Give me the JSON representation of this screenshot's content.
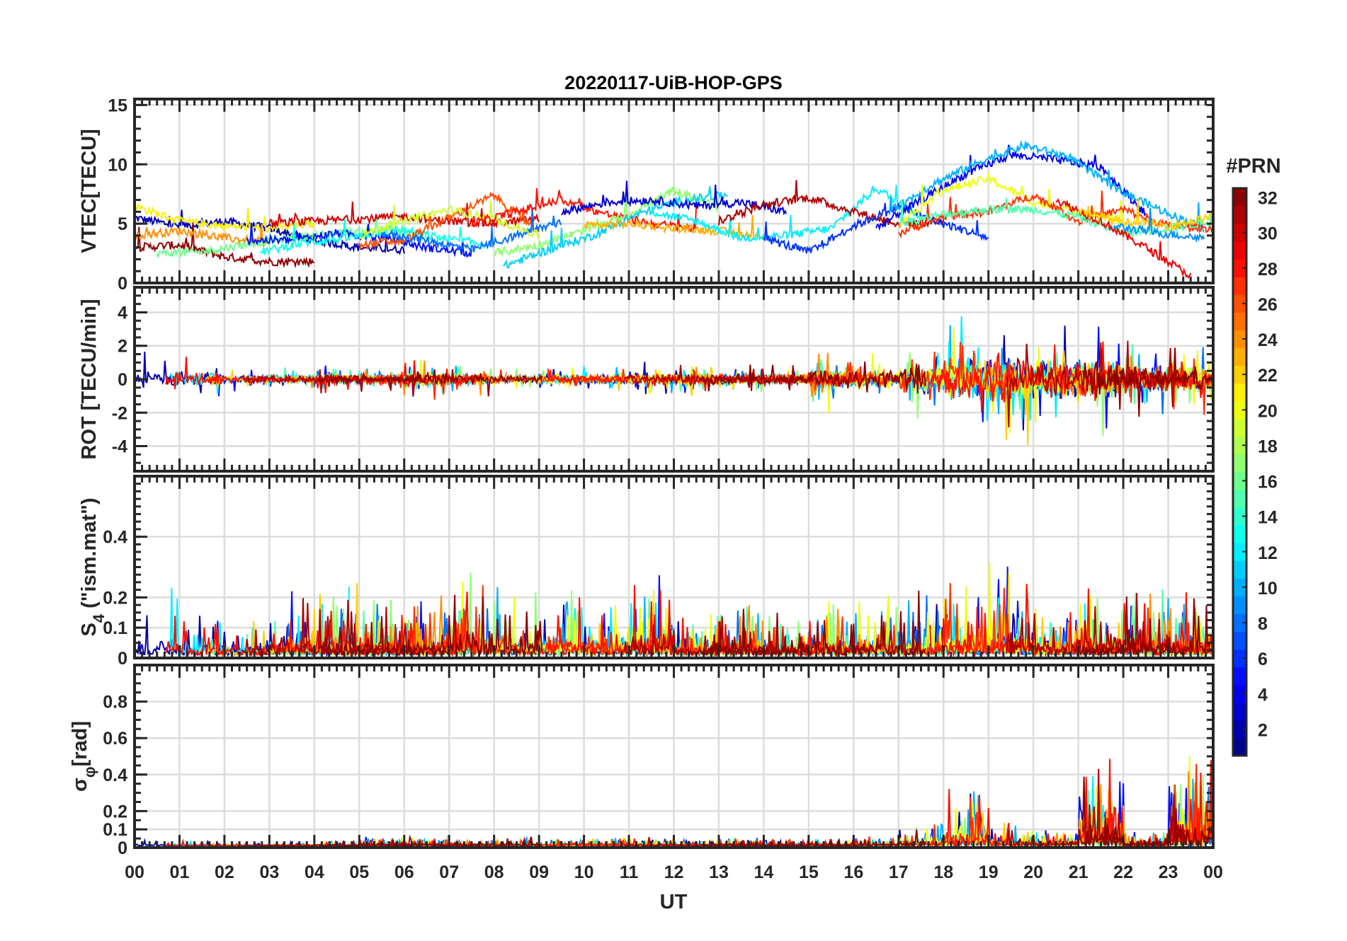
{
  "chart_data": {
    "type": "line",
    "title": "20220117-UiB-HOP-GPS",
    "xlabel": "UT",
    "x_tick_labels": [
      "00",
      "01",
      "02",
      "03",
      "04",
      "05",
      "06",
      "07",
      "08",
      "09",
      "10",
      "11",
      "12",
      "13",
      "14",
      "15",
      "16",
      "17",
      "18",
      "19",
      "20",
      "21",
      "22",
      "23",
      "00"
    ],
    "xlim": [
      0,
      24
    ],
    "grid": true,
    "colorbar": {
      "label": "#PRN",
      "range": [
        1,
        32
      ],
      "levels": 32,
      "colormap": "jet",
      "tick_labels": [
        "2",
        "4",
        "6",
        "8",
        "10",
        "12",
        "14",
        "16",
        "18",
        "20",
        "22",
        "24",
        "26",
        "28",
        "30",
        "32"
      ],
      "placement": "right"
    },
    "panels": [
      {
        "id": "vtec",
        "ylabel": "VTEC[TECU]",
        "ylim": [
          0,
          15.5
        ],
        "yticks": [
          0,
          5,
          10,
          15
        ],
        "ytick_labels": [
          "0",
          "5",
          "10",
          "15"
        ],
        "series": [
          {
            "prn": 2,
            "start": 0,
            "values": [
              5.5,
              4.8,
              5.2,
              4.6,
              3.6,
              3.0,
              2.8
            ]
          },
          {
            "prn": 32,
            "start": 0,
            "values": [
              3.0,
              3.2,
              2.2,
              1.8,
              1.8
            ]
          },
          {
            "prn": 21,
            "start": 0,
            "values": [
              6.5,
              5.2,
              4.8,
              4.6,
              5.0
            ]
          },
          {
            "prn": 24,
            "start": 0,
            "values": [
              4.0,
              4.4,
              3.8,
              3.4
            ]
          },
          {
            "prn": 16,
            "start": 0.5,
            "values": [
              2.5,
              2.6,
              3.3,
              3.8,
              4.2,
              4.5,
              4.0
            ]
          },
          {
            "prn": 5,
            "start": 2.5,
            "values": [
              3.6,
              3.6,
              4.2,
              3.8,
              3.0,
              2.5
            ]
          },
          {
            "prn": 13,
            "start": 2.8,
            "values": [
              2.6,
              3.4,
              3.8,
              4.6,
              3.8,
              3.3
            ]
          },
          {
            "prn": 30,
            "start": 3,
            "values": [
              5.0,
              5.2,
              5.4,
              5.6,
              5.2,
              5.0,
              5.4
            ]
          },
          {
            "prn": 26,
            "start": 5,
            "values": [
              3.2,
              3.6,
              5.5,
              7.4,
              4.2
            ]
          },
          {
            "prn": 8,
            "start": 5.5,
            "values": [
              4.2,
              3.6,
              2.8,
              4.0,
              5.2
            ]
          },
          {
            "prn": 19,
            "start": 5,
            "values": [
              4.0,
              5.2,
              6.2,
              5.4,
              4.0
            ]
          },
          {
            "prn": 28,
            "start": 7.5,
            "values": [
              5.0,
              6.0,
              7.0,
              5.8,
              5.0,
              4.6
            ]
          },
          {
            "prn": 17,
            "start": 8,
            "values": [
              2.5,
              3.2,
              4.4,
              5.8,
              7.8,
              6.4
            ]
          },
          {
            "prn": 11,
            "start": 8.2,
            "values": [
              1.4,
              2.8,
              4.0,
              5.8,
              7.0,
              7.4
            ]
          },
          {
            "prn": 3,
            "start": 9.5,
            "values": [
              6.0,
              6.8,
              7.0,
              6.5,
              6.8,
              6.0
            ]
          },
          {
            "prn": 23,
            "start": 10,
            "values": [
              4.8,
              5.0,
              4.6,
              4.4,
              3.8
            ]
          },
          {
            "prn": 12,
            "start": 11.5,
            "values": [
              6.0,
              5.2,
              3.8,
              4.0,
              4.6,
              8.0,
              5.6
            ]
          },
          {
            "prn": 31,
            "start": 13,
            "values": [
              5.2,
              6.6,
              7.2,
              6.0,
              5.0,
              5.2
            ]
          },
          {
            "prn": 6,
            "start": 14,
            "values": [
              3.8,
              2.6,
              4.8,
              6.4,
              5.0,
              3.8
            ]
          },
          {
            "prn": 4,
            "start": 16.5,
            "values": [
              4.6,
              7.0,
              9.2,
              10.8,
              10.4,
              9.8,
              5.8
            ]
          },
          {
            "prn": 10,
            "start": 16.8,
            "values": [
              6.0,
              8.4,
              10.2,
              11.6,
              10.6,
              8.0,
              6.2,
              4.6
            ]
          },
          {
            "prn": 20,
            "start": 17,
            "values": [
              5.0,
              7.8,
              8.8,
              6.8,
              6.0,
              5.2
            ]
          },
          {
            "prn": 27,
            "start": 17,
            "values": [
              4.2,
              5.6,
              6.0,
              7.4,
              5.2,
              6.2,
              4.8,
              4.6
            ]
          },
          {
            "prn": 15,
            "start": 17,
            "values": [
              5.0,
              5.8,
              6.2,
              6.2,
              5.6,
              4.2,
              4.6,
              5.2
            ]
          },
          {
            "prn": 29,
            "start": 20.5,
            "values": [
              7.0,
              5.2,
              3.0,
              0.6
            ]
          },
          {
            "prn": 22,
            "start": 21,
            "values": [
              6.0,
              5.2,
              4.8,
              5.6
            ]
          },
          {
            "prn": 9,
            "start": 21.8,
            "values": [
              4.8,
              4.2,
              3.8
            ]
          }
        ]
      },
      {
        "id": "rot",
        "ylabel": "ROT [TECU/min]",
        "ylim": [
          -5.5,
          5.5
        ],
        "yticks": [
          -4,
          -2,
          0,
          2,
          4
        ],
        "ytick_labels": [
          "-4",
          "-2",
          "0",
          "2",
          "4"
        ],
        "hourly_amplitude": [
          0.9,
          0.8,
          0.4,
          0.4,
          0.5,
          0.5,
          0.7,
          0.6,
          0.4,
          0.5,
          0.5,
          0.6,
          0.6,
          0.5,
          0.5,
          1.1,
          0.9,
          1.6,
          2.4,
          2.4,
          2.0,
          2.0,
          1.4,
          1.2
        ]
      },
      {
        "id": "s4",
        "ylabel": "S4 (\"ism.mat\")",
        "ylabel_main": "S",
        "ylabel_sub": "4",
        "ylabel_rest": " (\"ism.mat\")",
        "ylim": [
          0,
          0.6
        ],
        "yticks": [
          0,
          0.1,
          0.2,
          0.4
        ],
        "ytick_labels": [
          "0",
          "0.1",
          "0.2",
          "0.4"
        ],
        "hourly_amplitude": [
          0.25,
          0.15,
          0.12,
          0.22,
          0.25,
          0.2,
          0.2,
          0.32,
          0.25,
          0.28,
          0.22,
          0.28,
          0.15,
          0.2,
          0.15,
          0.2,
          0.22,
          0.22,
          0.3,
          0.32,
          0.2,
          0.25,
          0.25,
          0.22
        ]
      },
      {
        "id": "sigma_phi",
        "ylabel": "σφ[rad]",
        "ylabel_main": "σ",
        "ylabel_sub": "φ",
        "ylabel_rest": "[rad]",
        "ylim": [
          0,
          1.0
        ],
        "yticks": [
          0,
          0.1,
          0.2,
          0.4,
          0.6,
          0.8
        ],
        "ytick_labels": [
          "0",
          "0.1",
          "0.2",
          "0.4",
          "0.6",
          "0.8"
        ],
        "hourly_amplitude": [
          0.04,
          0.03,
          0.02,
          0.02,
          0.03,
          0.05,
          0.06,
          0.04,
          0.05,
          0.04,
          0.05,
          0.05,
          0.04,
          0.05,
          0.04,
          0.04,
          0.06,
          0.14,
          0.35,
          0.14,
          0.1,
          0.5,
          0.08,
          0.6
        ]
      }
    ]
  }
}
